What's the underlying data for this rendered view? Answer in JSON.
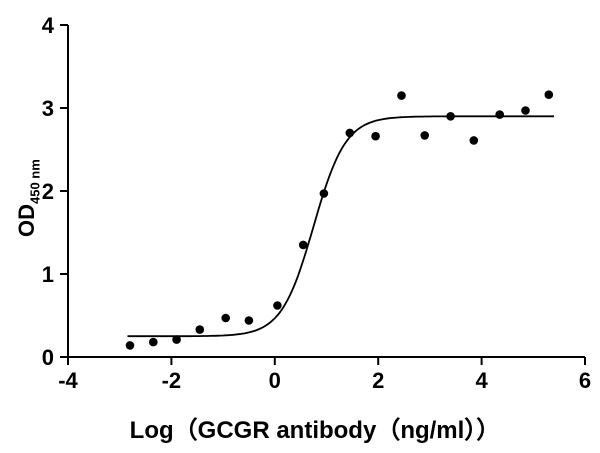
{
  "figure": {
    "xlabel": "Log（GCGR antibody（ng/ml））",
    "ylabel_main": "OD",
    "ylabel_sub": "450 nm"
  },
  "chart_data": {
    "type": "scatter",
    "title": "",
    "xlabel": "Log（GCGR antibody（ng/ml））",
    "ylabel": "OD 450nm",
    "xlim": [
      -4,
      6
    ],
    "ylim": [
      0,
      4
    ],
    "xticks": [
      -4,
      -2,
      0,
      2,
      4,
      6
    ],
    "yticks": [
      0,
      1,
      2,
      3,
      4
    ],
    "grid": false,
    "legend_position": "none",
    "marker_color": "#000000",
    "curve_color": "#000000",
    "points": [
      [
        -2.8,
        0.14
      ],
      [
        -2.35,
        0.18
      ],
      [
        -1.9,
        0.21
      ],
      [
        -1.45,
        0.33
      ],
      [
        -0.95,
        0.47
      ],
      [
        -0.5,
        0.44
      ],
      [
        0.05,
        0.62
      ],
      [
        0.55,
        1.35
      ],
      [
        0.95,
        1.97
      ],
      [
        1.45,
        2.7
      ],
      [
        1.95,
        2.66
      ],
      [
        2.45,
        3.15
      ],
      [
        2.9,
        2.67
      ],
      [
        3.4,
        2.9
      ],
      [
        3.85,
        2.61
      ],
      [
        4.35,
        2.92
      ],
      [
        4.85,
        2.97
      ],
      [
        5.3,
        3.16
      ]
    ],
    "fit": {
      "model": "4PL-sigmoid",
      "bottom": 0.25,
      "top": 2.9,
      "logEC50": 0.75,
      "hillslope": 1.4,
      "x_range": [
        -2.85,
        5.4
      ]
    }
  }
}
